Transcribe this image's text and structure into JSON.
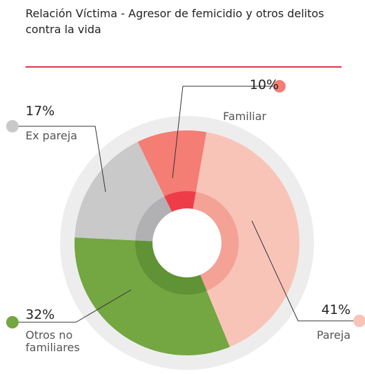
{
  "chart_data": {
    "type": "donut",
    "title": "Relación Víctima - Agresor de femicidio y otros delitos contra la vida",
    "categories": [
      "Familiar",
      "Pareja",
      "Otros no familiares",
      "Ex pareja"
    ],
    "values": [
      10,
      41,
      32,
      17
    ],
    "value_labels": [
      "10%",
      "41%",
      "32%",
      "17%"
    ],
    "colors": [
      "#f47d74",
      "#f9c4b8",
      "#74a641",
      "#c9c9ca"
    ],
    "inner_colors": [
      "#ee3d49",
      "#f4a196",
      "#609236",
      "#b1b1b3"
    ]
  }
}
